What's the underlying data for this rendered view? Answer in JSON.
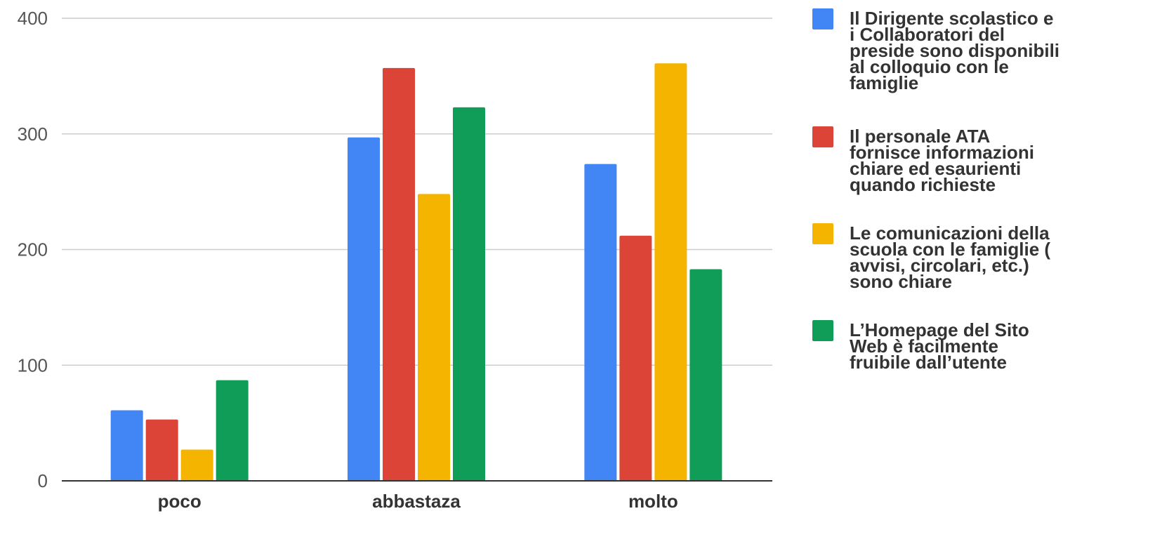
{
  "chart_data": {
    "type": "bar",
    "categories": [
      "poco",
      "abbastaza",
      "molto"
    ],
    "series": [
      {
        "name": "Il Dirigente scolastico e i Collaboratori del preside sono disponibili al colloquio con le famiglie",
        "legend_lines": [
          "Il Dirigente scolastico e",
          "i Collaboratori del",
          "preside sono disponibili",
          "al colloquio con le",
          "famiglie"
        ],
        "color": "#4285F4",
        "values": [
          61,
          297,
          274
        ]
      },
      {
        "name": "Il personale ATA fornisce informazioni chiare ed esaurienti quando richieste",
        "legend_lines": [
          "Il personale ATA",
          "fornisce informazioni",
          "chiare ed esaurienti",
          "quando richieste"
        ],
        "color": "#DB4437",
        "values": [
          53,
          357,
          212
        ]
      },
      {
        "name": "Le comunicazioni della scuola con le famiglie ( avvisi, circolari, etc.) sono chiare",
        "legend_lines": [
          "Le comunicazioni della",
          "scuola con le famiglie (",
          "avvisi, circolari, etc.)",
          "sono chiare"
        ],
        "color": "#F4B400",
        "values": [
          27,
          248,
          361
        ]
      },
      {
        "name": "L’Homepage del Sito Web è facilmente fruibile  dall’utente",
        "legend_lines": [
          "L’Homepage del Sito",
          "Web è facilmente",
          "fruibile  dall’utente"
        ],
        "color": "#0F9D58",
        "values": [
          87,
          323,
          183
        ]
      }
    ],
    "yticks": [
      "0",
      "100",
      "200",
      "300",
      "400"
    ],
    "ylim": [
      0,
      400
    ],
    "grid": true,
    "legend_position": "right"
  }
}
